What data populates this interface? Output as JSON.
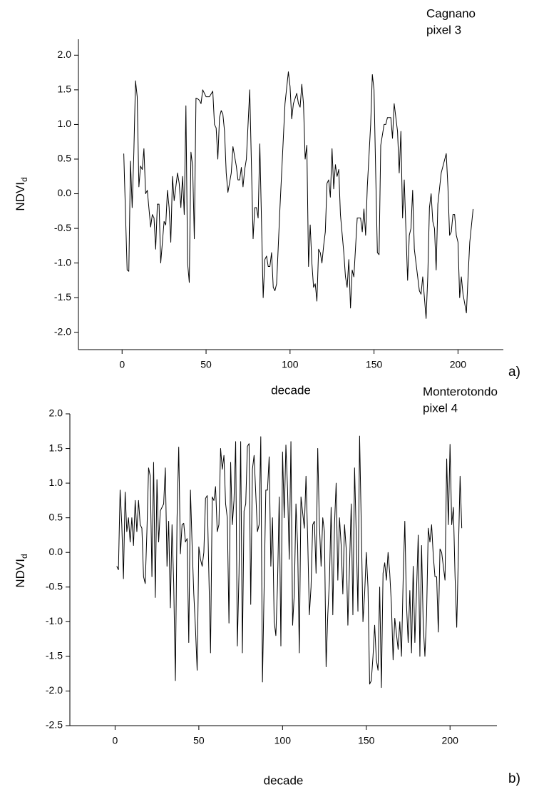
{
  "chart_data": [
    {
      "type": "line",
      "annotation": [
        "Cagnano",
        "pixel 3"
      ],
      "panel_label": "a)",
      "xlabel": "decade",
      "ylabel": [
        "NDVI",
        "d"
      ],
      "xlim": [
        -26,
        227
      ],
      "ylim": [
        -2.25,
        2.23
      ],
      "xticks": [
        0,
        50,
        100,
        150,
        200
      ],
      "yticks": [
        {
          "value": 2,
          "label": "2.0"
        },
        {
          "value": 1.5,
          "label": "1.5"
        },
        {
          "value": 1,
          "label": "1.0"
        },
        {
          "value": 0.5,
          "label": "0.5"
        },
        {
          "value": 0,
          "label": "0.0"
        },
        {
          "value": -0.5,
          "label": "-0.5"
        },
        {
          "value": -1,
          "label": "-1.0"
        },
        {
          "value": -1.5,
          "label": "-1.5"
        },
        {
          "value": -2,
          "label": "-2.0"
        }
      ],
      "color": "#000000",
      "x": [
        1,
        3,
        4,
        5,
        6,
        7,
        8,
        9,
        10,
        11,
        12,
        13,
        14,
        15,
        17,
        18,
        19,
        20,
        21,
        22,
        23,
        25,
        26,
        27,
        28,
        29,
        30,
        31,
        33,
        34,
        35,
        36,
        37,
        38,
        39,
        40,
        41,
        42,
        43,
        44,
        45,
        46,
        47,
        48,
        50,
        52,
        54,
        55,
        56,
        57,
        58,
        59,
        60,
        61,
        62,
        63,
        65,
        66,
        68,
        69,
        70,
        71,
        72,
        73,
        74,
        76,
        78,
        79,
        80,
        81,
        82,
        84,
        85,
        86,
        87,
        88,
        89,
        90,
        91,
        92,
        94,
        96,
        97,
        99,
        100,
        101,
        102,
        104,
        105,
        106,
        107,
        108,
        109,
        110,
        111,
        112,
        113,
        114,
        115,
        116,
        117,
        118,
        119,
        120,
        121,
        122,
        123,
        124,
        125,
        126,
        127,
        128,
        129,
        130,
        132,
        133,
        134,
        135,
        136,
        137,
        138,
        140,
        142,
        143,
        144,
        145,
        146,
        148,
        149,
        150,
        151,
        152,
        153,
        154,
        156,
        157,
        158,
        160,
        161,
        162,
        164,
        165,
        166,
        167,
        168,
        170,
        171,
        172,
        173,
        174,
        177,
        178,
        179,
        181,
        182,
        183,
        184,
        185,
        186,
        187,
        188,
        190,
        193,
        194,
        195,
        196,
        197,
        198,
        199,
        200,
        201,
        202,
        203,
        205,
        206,
        207,
        209
      ],
      "values": [
        0.58,
        -1.1,
        -1.12,
        0.47,
        -0.2,
        0.6,
        1.63,
        1.4,
        0.1,
        0.4,
        0.35,
        0.65,
        0,
        0.05,
        -0.48,
        -0.3,
        -0.35,
        -0.8,
        -0.15,
        -0.15,
        -1,
        -0.4,
        -0.45,
        0.05,
        -0.2,
        -0.7,
        0.25,
        -0.1,
        0.3,
        0.15,
        -0.2,
        0.25,
        -0.3,
        1.27,
        -1,
        -1.28,
        0.6,
        0.4,
        -0.65,
        1.38,
        1.37,
        1.35,
        1.3,
        1.5,
        1.4,
        1.4,
        1.48,
        1,
        0.95,
        0.5,
        1.1,
        1.2,
        1.15,
        0.9,
        0.3,
        0.02,
        0.3,
        0.68,
        0.4,
        0.2,
        0.2,
        0.38,
        0.1,
        0.35,
        0.5,
        1.5,
        -0.65,
        -0.2,
        -0.2,
        -0.35,
        0.72,
        -1.5,
        -0.95,
        -0.9,
        -1.05,
        -1.05,
        -0.85,
        -1.35,
        -1.4,
        -1.3,
        -0.2,
        0.8,
        1.3,
        1.76,
        1.55,
        1.08,
        1.3,
        1.45,
        1.3,
        1.25,
        1.58,
        1.3,
        0.5,
        0.7,
        -1.05,
        -0.45,
        -1,
        -1.35,
        -1.3,
        -1.55,
        -0.8,
        -0.85,
        -1,
        -0.75,
        -0.55,
        0.15,
        0.2,
        -0.05,
        0.65,
        0.07,
        0.42,
        0.25,
        0.35,
        -0.3,
        -0.85,
        -1.2,
        -1.35,
        -0.95,
        -1.65,
        -1.1,
        -1.2,
        -0.35,
        -0.35,
        -0.55,
        -0.22,
        -0.6,
        0.1,
        1,
        1.72,
        1.5,
        0.3,
        -0.85,
        -0.88,
        0.7,
        1,
        1,
        1.1,
        1.1,
        0.8,
        1.3,
        0.9,
        0.3,
        0.9,
        -0.35,
        0.2,
        -1.25,
        -0.6,
        -0.5,
        0.05,
        -0.8,
        -1.4,
        -1.45,
        -1.2,
        -1.8,
        -1.2,
        -0.2,
        0,
        -0.4,
        -0.5,
        -1.1,
        -0.15,
        0.3,
        0.58,
        0.1,
        -0.6,
        -0.55,
        -0.3,
        -0.3,
        -0.6,
        -0.7,
        -1.5,
        -1.2,
        -1.45,
        -1.72,
        -1.2,
        -0.7,
        -0.22
      ]
    },
    {
      "type": "line",
      "annotation": [
        "Monterotondo",
        "pixel 4"
      ],
      "panel_label": "b)",
      "xlabel": "decade",
      "ylabel": [
        "NDVI",
        "d"
      ],
      "xlim": [
        -27,
        228
      ],
      "ylim": [
        -2.5,
        2.0
      ],
      "xticks": [
        0,
        50,
        100,
        150,
        200
      ],
      "yticks": [
        {
          "value": 2,
          "label": "2.0"
        },
        {
          "value": 1.5,
          "label": "1.5"
        },
        {
          "value": 1,
          "label": "1.0"
        },
        {
          "value": 0.5,
          "label": "0.5"
        },
        {
          "value": 0,
          "label": "0.0"
        },
        {
          "value": -0.5,
          "label": "-0.5"
        },
        {
          "value": -1,
          "label": "-1.0"
        },
        {
          "value": -1.5,
          "label": "-1.5"
        },
        {
          "value": -2,
          "label": "-2.0"
        },
        {
          "value": -2.5,
          "label": "-2.5"
        }
      ],
      "color": "#000000",
      "x": [
        1,
        2,
        3,
        4,
        5,
        6,
        7,
        8,
        9,
        10,
        11,
        12,
        13,
        14,
        15,
        16,
        17,
        18,
        19,
        20,
        21,
        22,
        23,
        24,
        25,
        26,
        27,
        29,
        30,
        31,
        32,
        33,
        34,
        35,
        36,
        37,
        38,
        39,
        40,
        41,
        42,
        43,
        44,
        45,
        46,
        47,
        48,
        49,
        50,
        51,
        52,
        53,
        54,
        55,
        57,
        58,
        59,
        60,
        61,
        62,
        63,
        64,
        65,
        66,
        67,
        68,
        69,
        70,
        71,
        72,
        73,
        74,
        75,
        76,
        77,
        78,
        79,
        80,
        81,
        82,
        83,
        85,
        86,
        87,
        88,
        89,
        90,
        91,
        92,
        93,
        94,
        95,
        96,
        97,
        98,
        99,
        100,
        101,
        102,
        103,
        104,
        105,
        106,
        107,
        108,
        109,
        110,
        111,
        113,
        114,
        115,
        116,
        117,
        118,
        119,
        120,
        121,
        122,
        123,
        124,
        125,
        126,
        127,
        128,
        129,
        130,
        131,
        132,
        133,
        134,
        135,
        136,
        137,
        138,
        139,
        141,
        142,
        143,
        144,
        145,
        146,
        147,
        148,
        149,
        150,
        151,
        152,
        153,
        154,
        155,
        156,
        157,
        158,
        159,
        160,
        161,
        162,
        163,
        164,
        165,
        166,
        167,
        169,
        170,
        171,
        172,
        173,
        174,
        175,
        176,
        177,
        178,
        179,
        180,
        181,
        182,
        183,
        184,
        185,
        186,
        187,
        188,
        189,
        190,
        191,
        192,
        193,
        194,
        195,
        197,
        198,
        199,
        200,
        201,
        202,
        203,
        204,
        205,
        206,
        207
      ],
      "values": [
        -0.2,
        -0.25,
        0.9,
        0.4,
        -0.38,
        0.87,
        0.3,
        0.5,
        0.15,
        0.5,
        0.1,
        0.75,
        0.3,
        0.75,
        0.4,
        0.35,
        -0.35,
        -0.45,
        0.3,
        1.22,
        1.1,
        -0.35,
        1.3,
        -0.65,
        1.05,
        0.15,
        0.6,
        0.7,
        1.22,
        -0.2,
        0.45,
        -0.8,
        0.4,
        -0.45,
        -1.85,
        0.5,
        1.52,
        -0.02,
        0.4,
        0.42,
        0.15,
        0.2,
        -1.3,
        0.9,
        0.1,
        -0.6,
        -1.1,
        -1.7,
        0.08,
        -0.1,
        -0.2,
        0,
        0.78,
        0.82,
        -1.45,
        0.8,
        0.75,
        0.95,
        0.3,
        0.4,
        1.5,
        1.2,
        1.4,
        0.7,
        0.5,
        -1.02,
        1.3,
        0.4,
        0.75,
        1.6,
        -1.35,
        -0.3,
        1.6,
        -1.45,
        0.6,
        0.7,
        1.53,
        1.57,
        -0.75,
        1.2,
        1.4,
        0.3,
        0.4,
        1.67,
        -1.87,
        -0.5,
        0.9,
        0.9,
        1.38,
        -0.2,
        0.5,
        -1,
        -1.2,
        -0.45,
        0.8,
        -1.35,
        1.45,
        0.5,
        1.55,
        0.9,
        -0.1,
        1.6,
        -1.05,
        -0.6,
        0.7,
        0.1,
        -1.45,
        0.8,
        0.35,
        1.1,
        0.2,
        -0.9,
        -0.5,
        0.4,
        0.45,
        -0.3,
        1.5,
        0.4,
        -0.2,
        0.5,
        0.3,
        -1.65,
        -0.9,
        -0.4,
        0.65,
        -0.9,
        0.4,
        1,
        -0.4,
        0.5,
        0.1,
        -0.6,
        0.4,
        0.05,
        -1.05,
        0.7,
        -0.9,
        1.22,
        0.25,
        -0.85,
        1.68,
        0.4,
        -1,
        -0.6,
        0,
        -0.5,
        -1.9,
        -1.85,
        -1.5,
        -1.05,
        -1.55,
        -1.7,
        -0.5,
        -1.95,
        -0.3,
        -0.15,
        -0.4,
        0,
        -0.3,
        -0.75,
        -1.55,
        -0.95,
        -1.4,
        -1,
        -1.5,
        -0.4,
        0.45,
        -0.75,
        -1.3,
        -0.55,
        -1.45,
        -0.2,
        -1.3,
        -0.55,
        0.25,
        -1.5,
        0.1,
        -1.05,
        -1.5,
        -0.9,
        0.35,
        0.15,
        0.4,
        -0.05,
        -0.35,
        -0.35,
        -1.15,
        0.05,
        0,
        -0.4,
        1.35,
        0.4,
        1.56,
        0.4,
        0.65,
        -0.35,
        -1.08,
        0,
        1.1,
        0.35
      ]
    }
  ]
}
